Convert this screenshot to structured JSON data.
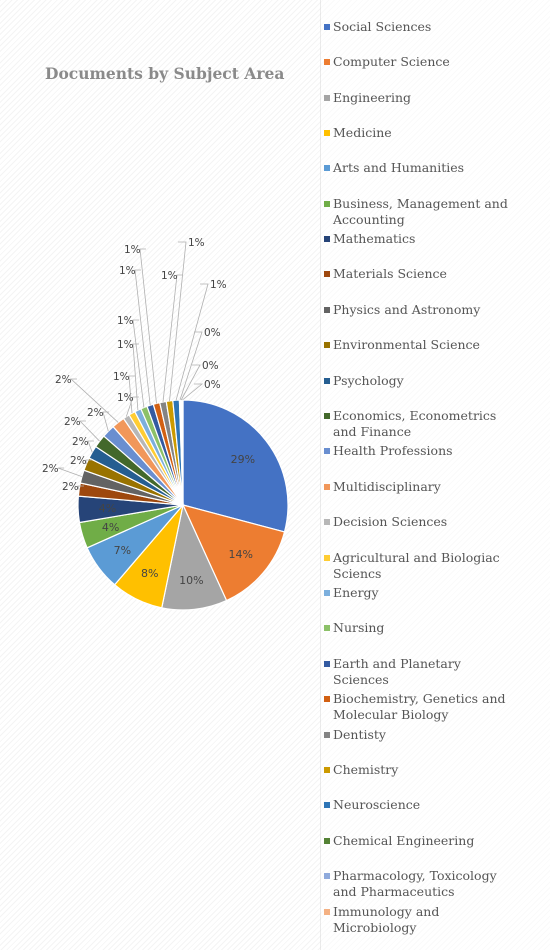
{
  "chart_data": {
    "type": "pie",
    "title": "Documents by Subject Area",
    "legend_position": "right",
    "categories": [
      "Social Sciences",
      "Computer Science",
      "Engineering",
      "Medicine",
      "Arts and Humanities",
      "Business, Management and Accounting",
      "Mathematics",
      "Materials Science",
      "Physics and Astronomy",
      "Environmental Science",
      "Psychology",
      "Economics, Econometrics and Finance",
      "Health Professions",
      "Multidisciplinary",
      "Decision Sciences",
      "Agricultural and Biologiac Sciencs",
      "Energy",
      "Nursing",
      "Earth and Planetary Sciences",
      "Biochemistry, Genetics and Molecular Biology",
      "Dentisty",
      "Chemistry",
      "Neuroscience",
      "Chemical Engineering",
      "Pharmacology, Toxicology and Pharmaceutics",
      "Immunology and Microbiology"
    ],
    "values": [
      29,
      14,
      10,
      8,
      7,
      4,
      4,
      2,
      2,
      2,
      2,
      2,
      2,
      2,
      1,
      1,
      1,
      1,
      1,
      1,
      1,
      1,
      1,
      0,
      0,
      0
    ],
    "labels": [
      "29%",
      "14%",
      "10%",
      "8%",
      "7%",
      "4%",
      "4%",
      "2%",
      "2%",
      "2%",
      "2%",
      "2%",
      "2%",
      "2%",
      "1%",
      "1%",
      "1%",
      "1%",
      "1%",
      "1%",
      "1%",
      "1%",
      "1%",
      "0%",
      "0%",
      "0%"
    ],
    "colors": [
      "#4472c4",
      "#ed7d31",
      "#a5a5a5",
      "#ffc000",
      "#5b9bd5",
      "#70ad47",
      "#264478",
      "#9e480e",
      "#636363",
      "#997300",
      "#255e91",
      "#43682b",
      "#698ed0",
      "#f1975a",
      "#b7b7b7",
      "#ffcd33",
      "#7cafdd",
      "#8cc168",
      "#335aa1",
      "#d26012",
      "#848484",
      "#cc9a00",
      "#2e75b6",
      "#548235",
      "#8faadc",
      "#f4b183"
    ]
  }
}
